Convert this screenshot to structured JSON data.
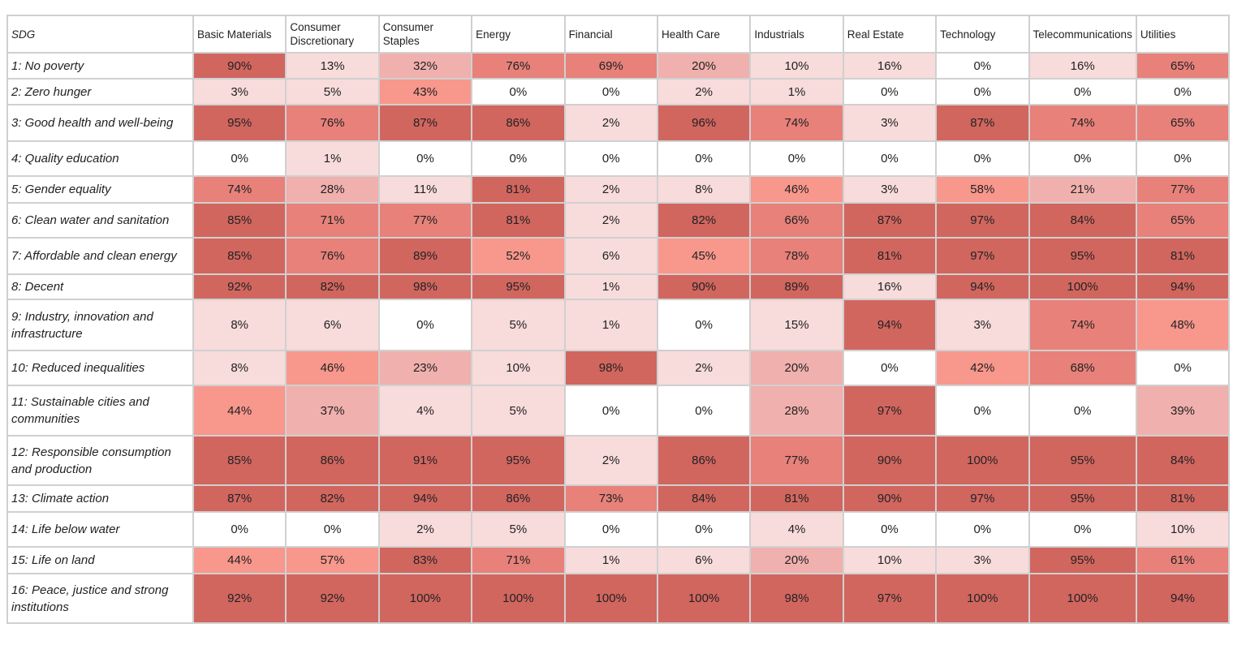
{
  "table": {
    "header": [
      "SDG",
      "Basic Materials",
      "Consumer Discretionary",
      "Consumer Staples",
      "Energy",
      "Financial",
      "Health Care",
      "Industrials",
      "Real Estate",
      "Technology",
      "Telecommunications",
      "Utilities"
    ],
    "rows": [
      [
        "1: No poverty",
        "90%",
        "13%",
        "32%",
        "76%",
        "69%",
        "20%",
        "10%",
        "16%",
        "0%",
        "16%",
        "65%"
      ],
      [
        "2: Zero hunger",
        "3%",
        "5%",
        "43%",
        "0%",
        "0%",
        "2%",
        "1%",
        "0%",
        "0%",
        "0%",
        "0%"
      ],
      [
        "3: Good health and well-being",
        "95%",
        "76%",
        "87%",
        "86%",
        "2%",
        "96%",
        "74%",
        "3%",
        "87%",
        "74%",
        "65%"
      ],
      [
        "4: Quality education",
        "0%",
        "1%",
        "0%",
        "0%",
        "0%",
        "0%",
        "0%",
        "0%",
        "0%",
        "0%",
        "0%"
      ],
      [
        "5: Gender equality",
        "74%",
        "28%",
        "11%",
        "81%",
        "2%",
        "8%",
        "46%",
        "3%",
        "58%",
        "21%",
        "77%"
      ],
      [
        "6: Clean water and sanitation",
        "85%",
        "71%",
        "77%",
        "81%",
        "2%",
        "82%",
        "66%",
        "87%",
        "97%",
        "84%",
        "65%"
      ],
      [
        "7: Affordable and clean energy",
        "85%",
        "76%",
        "89%",
        "52%",
        "6%",
        "45%",
        "78%",
        "81%",
        "97%",
        "95%",
        "81%"
      ],
      [
        "8: Decent",
        "92%",
        "82%",
        "98%",
        "95%",
        "1%",
        "90%",
        "89%",
        "16%",
        "94%",
        "100%",
        "94%"
      ],
      [
        "9: Industry, innovation and infrastructure",
        "8%",
        "6%",
        "0%",
        "5%",
        "1%",
        "0%",
        "15%",
        "94%",
        "3%",
        "74%",
        "48%"
      ],
      [
        "10: Reduced inequalities",
        "8%",
        "46%",
        "23%",
        "10%",
        "98%",
        "2%",
        "20%",
        "0%",
        "42%",
        "68%",
        "0%"
      ],
      [
        "11: Sustainable cities and communities",
        "44%",
        "37%",
        "4%",
        "5%",
        "0%",
        "0%",
        "28%",
        "97%",
        "0%",
        "0%",
        "39%"
      ],
      [
        "12: Responsible consumption and production",
        "85%",
        "86%",
        "91%",
        "95%",
        "2%",
        "86%",
        "77%",
        "90%",
        "100%",
        "95%",
        "84%"
      ],
      [
        "13: Climate action",
        "87%",
        "82%",
        "94%",
        "86%",
        "73%",
        "84%",
        "81%",
        "90%",
        "97%",
        "95%",
        "81%"
      ],
      [
        "14: Life below water",
        "0%",
        "0%",
        "2%",
        "5%",
        "0%",
        "0%",
        "4%",
        "0%",
        "0%",
        "0%",
        "10%"
      ],
      [
        "15: Life on land",
        "44%",
        "57%",
        "83%",
        "71%",
        "1%",
        "6%",
        "20%",
        "10%",
        "3%",
        "95%",
        "61%"
      ],
      [
        "16: Peace, justice and strong institutions",
        "92%",
        "92%",
        "100%",
        "100%",
        "100%",
        "100%",
        "98%",
        "97%",
        "100%",
        "100%",
        "94%"
      ]
    ]
  }
}
